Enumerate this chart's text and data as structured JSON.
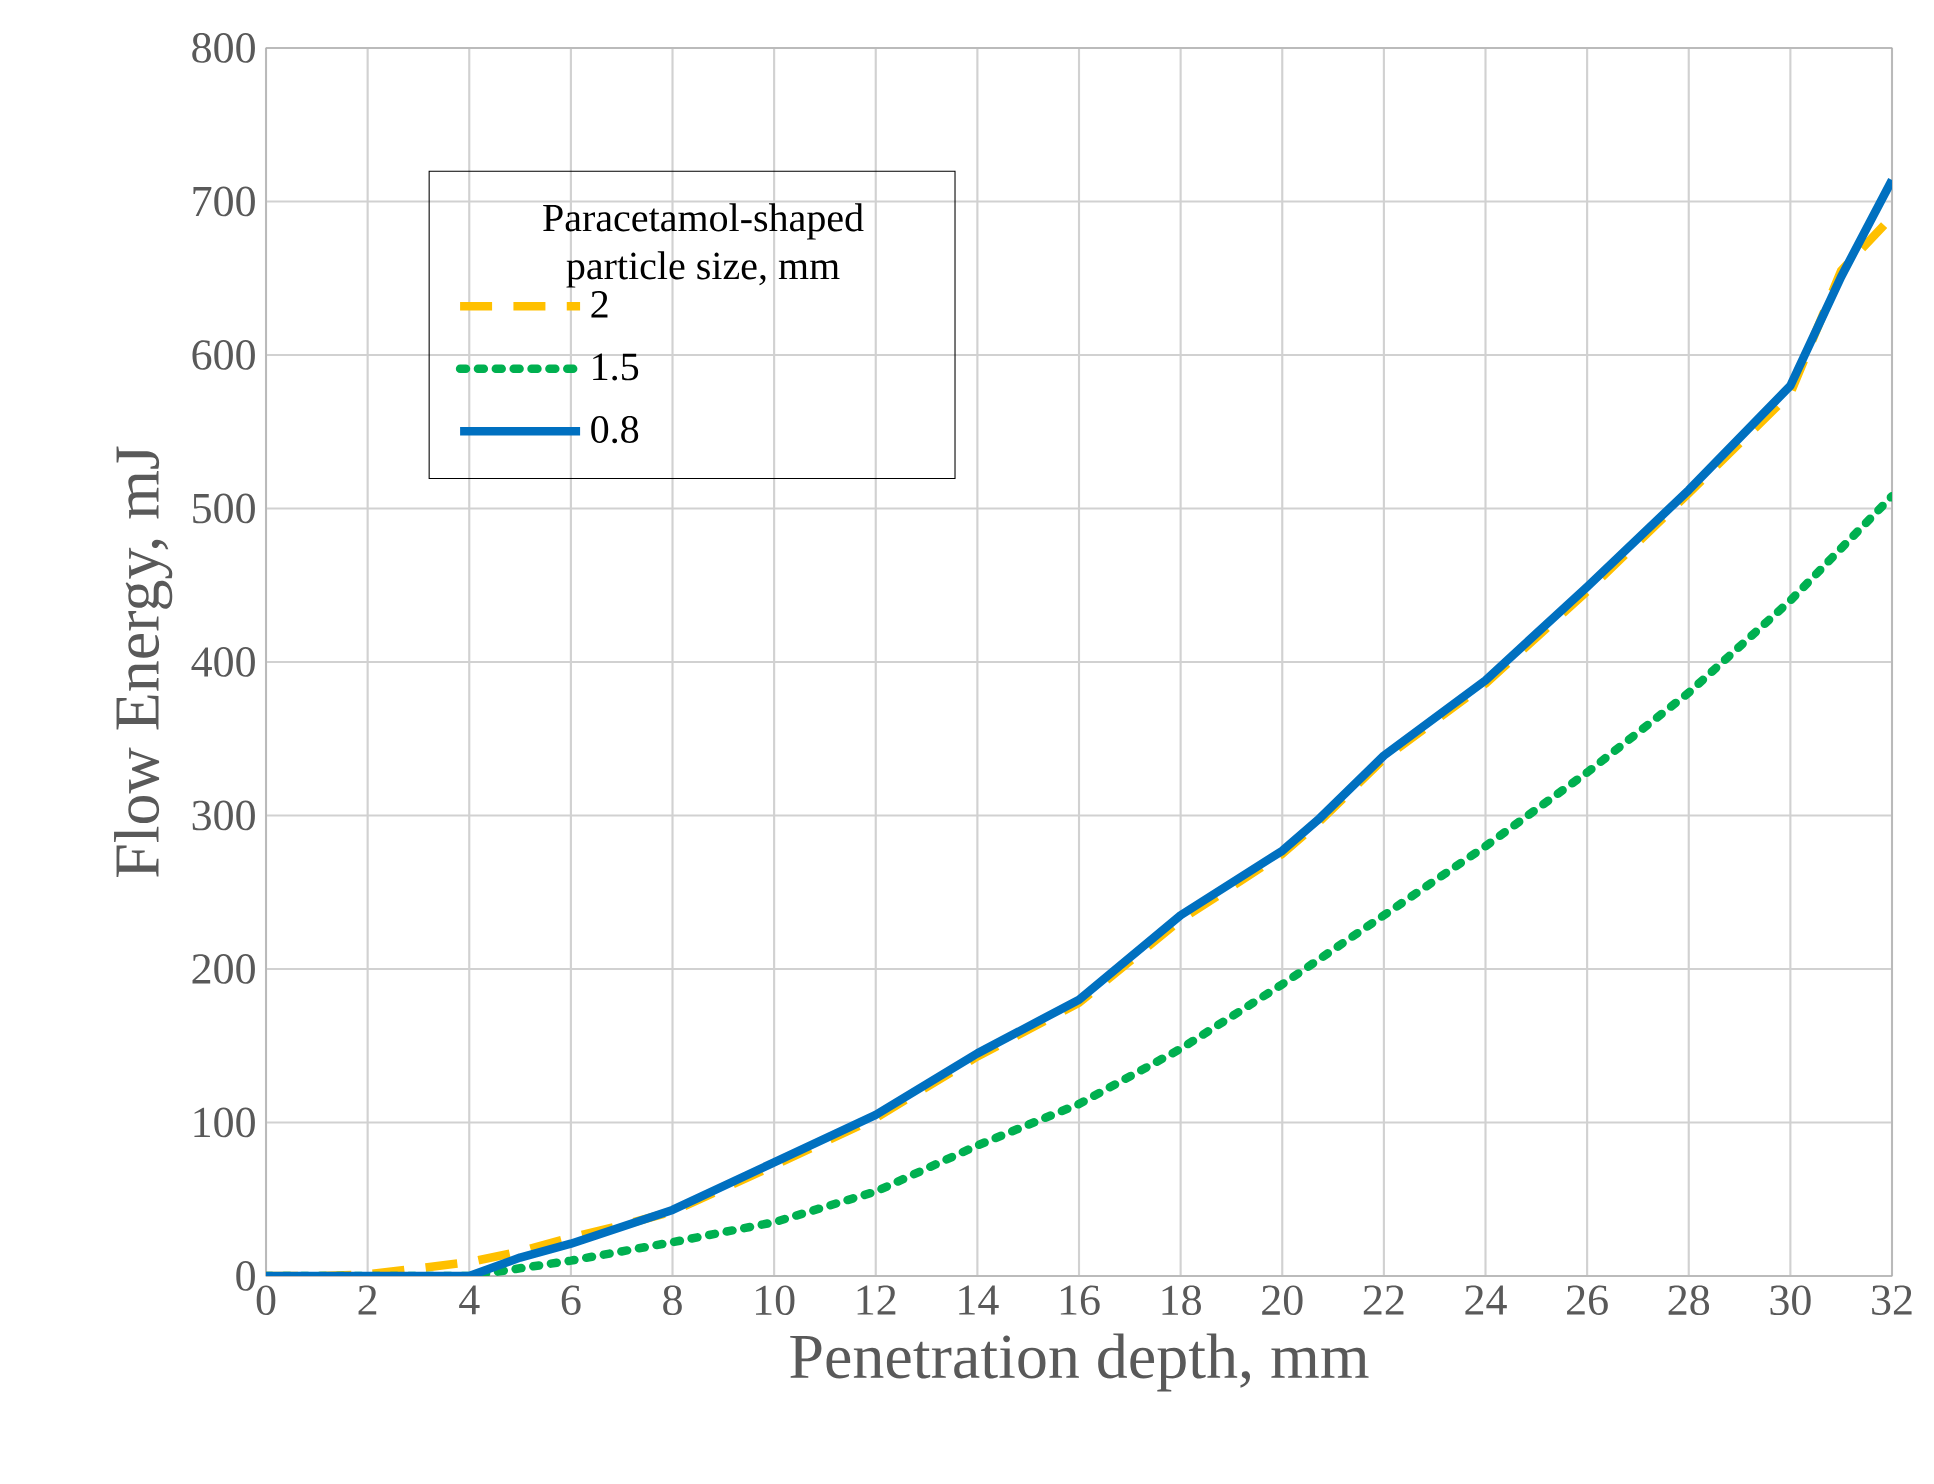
{
  "chart_data": {
    "type": "line",
    "xlabel": "Penetration depth, mm",
    "ylabel": "Flow Energy, mJ",
    "legend_title": "Paracetamol-shaped particle size, mm",
    "xlim": [
      0,
      32
    ],
    "ylim": [
      0,
      800
    ],
    "xticks": [
      0,
      2,
      4,
      6,
      8,
      10,
      12,
      14,
      16,
      18,
      20,
      22,
      24,
      26,
      28,
      30,
      32
    ],
    "yticks": [
      0,
      100,
      200,
      300,
      400,
      500,
      600,
      700,
      800
    ],
    "grid": true,
    "legend": "top left",
    "series": [
      {
        "name": "2",
        "color": "#ffc000",
        "line_style": "dashed",
        "x": [
          0,
          1,
          2,
          3,
          4,
          5,
          6,
          7,
          8,
          10,
          12,
          14,
          16,
          18,
          20,
          20.7,
          22,
          24,
          26,
          28,
          30,
          31,
          32
        ],
        "values": [
          0,
          0,
          1,
          5,
          9,
          16,
          25,
          33,
          42,
          72,
          103,
          143,
          178,
          232,
          275,
          295,
          337,
          386,
          446,
          510,
          575,
          655,
          690
        ]
      },
      {
        "name": "1.5",
        "color": "#00b050",
        "line_style": "dotted",
        "x": [
          0,
          2,
          4,
          6,
          8,
          10,
          12,
          14,
          16,
          18,
          20,
          22,
          24,
          26,
          28,
          30,
          32
        ],
        "values": [
          0,
          0,
          0,
          10,
          22,
          35,
          55,
          85,
          112,
          148,
          190,
          235,
          280,
          328,
          380,
          440,
          508
        ]
      },
      {
        "name": "0.8",
        "color": "#0070c0",
        "line_style": "solid",
        "x": [
          0,
          2,
          4,
          5,
          6,
          8,
          10,
          12,
          14,
          16,
          18,
          20,
          20.7,
          22,
          24,
          26,
          28,
          30,
          31,
          32
        ],
        "values": [
          0,
          0,
          0,
          12,
          21,
          43,
          74,
          105,
          145,
          180,
          235,
          277,
          297,
          339,
          388,
          449,
          512,
          580,
          651,
          714
        ]
      }
    ]
  }
}
